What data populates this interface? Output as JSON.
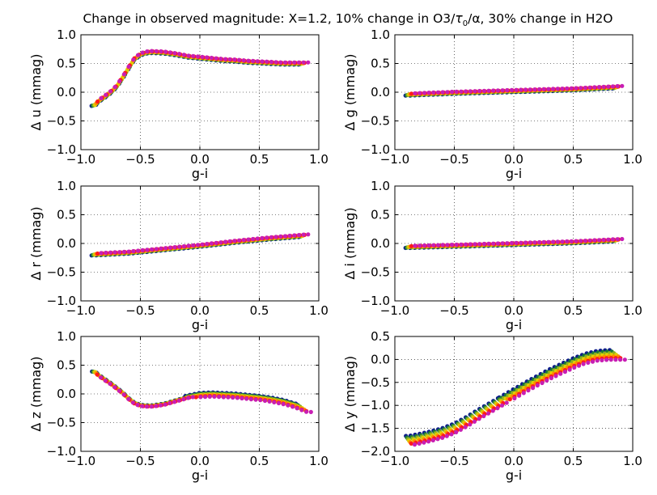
{
  "figure": {
    "title": "Change in observed magnitude: X=1.2, 10% change in O3/τ₀/α, 30% change in H2O",
    "title_parts": [
      "Change in observed magnitude: X=1.2, 10% change in O3/",
      "τ",
      "0",
      "/α, 30% change in H2O"
    ]
  },
  "chart_data": [
    {
      "type": "scatter",
      "panel": "u",
      "ylabel": "Δ u (mmag)",
      "xlabel": "g-i",
      "xlim": [
        -1.0,
        1.0
      ],
      "ylim": [
        -1.0,
        1.0
      ],
      "xticks": [
        "−1.0",
        "−0.5",
        "0.0",
        "0.5",
        "1.0"
      ],
      "yticks": [
        "1.0",
        "0.5",
        "0.0",
        "−0.5",
        "−1.0"
      ],
      "grid": true,
      "curve": [
        [
          -0.88,
          -0.22
        ],
        [
          -0.85,
          -0.15
        ],
        [
          -0.8,
          -0.08
        ],
        [
          -0.75,
          0.0
        ],
        [
          -0.7,
          0.1
        ],
        [
          -0.65,
          0.25
        ],
        [
          -0.6,
          0.42
        ],
        [
          -0.55,
          0.58
        ],
        [
          -0.5,
          0.66
        ],
        [
          -0.45,
          0.69
        ],
        [
          -0.4,
          0.7
        ],
        [
          -0.3,
          0.69
        ],
        [
          -0.2,
          0.66
        ],
        [
          -0.1,
          0.62
        ],
        [
          0.0,
          0.6
        ],
        [
          0.1,
          0.58
        ],
        [
          0.2,
          0.56
        ],
        [
          0.3,
          0.55
        ],
        [
          0.4,
          0.53
        ],
        [
          0.5,
          0.52
        ],
        [
          0.6,
          0.51
        ],
        [
          0.7,
          0.5
        ],
        [
          0.8,
          0.5
        ],
        [
          0.9,
          0.5
        ]
      ]
    },
    {
      "type": "scatter",
      "panel": "g",
      "ylabel": "Δ g (mmag)",
      "xlabel": "g-i",
      "xlim": [
        -1.0,
        1.0
      ],
      "ylim": [
        -1.0,
        1.0
      ],
      "xticks": [
        "−1.0",
        "−0.5",
        "0.0",
        "0.5",
        "1.0"
      ],
      "yticks": [
        "1.0",
        "0.5",
        "0.0",
        "−0.5",
        "−1.0"
      ],
      "grid": true,
      "curve": [
        [
          -0.88,
          -0.04
        ],
        [
          -0.5,
          -0.01
        ],
        [
          0.0,
          0.02
        ],
        [
          0.5,
          0.05
        ],
        [
          0.9,
          0.09
        ]
      ]
    },
    {
      "type": "scatter",
      "panel": "r",
      "ylabel": "Δ r (mmag)",
      "xlabel": "g-i",
      "xlim": [
        -1.0,
        1.0
      ],
      "ylim": [
        -1.0,
        1.0
      ],
      "xticks": [
        "−1.0",
        "−0.5",
        "0.0",
        "0.5",
        "1.0"
      ],
      "yticks": [
        "1.0",
        "0.5",
        "0.0",
        "−0.5",
        "−1.0"
      ],
      "grid": true,
      "curve": [
        [
          -0.88,
          -0.19
        ],
        [
          -0.6,
          -0.16
        ],
        [
          -0.3,
          -0.1
        ],
        [
          0.0,
          -0.04
        ],
        [
          0.3,
          0.03
        ],
        [
          0.6,
          0.09
        ],
        [
          0.9,
          0.14
        ]
      ]
    },
    {
      "type": "scatter",
      "panel": "i",
      "ylabel": "Δ i (mmag)",
      "xlabel": "g-i",
      "xlim": [
        -1.0,
        1.0
      ],
      "ylim": [
        -1.0,
        1.0
      ],
      "xticks": [
        "−1.0",
        "−0.5",
        "0.0",
        "0.5",
        "1.0"
      ],
      "yticks": [
        "1.0",
        "0.5",
        "0.0",
        "−0.5",
        "−1.0"
      ],
      "grid": true,
      "curve": [
        [
          -0.88,
          -0.06
        ],
        [
          -0.5,
          -0.04
        ],
        [
          0.0,
          -0.01
        ],
        [
          0.5,
          0.02
        ],
        [
          0.9,
          0.06
        ]
      ]
    },
    {
      "type": "scatter",
      "panel": "z",
      "ylabel": "Δ z (mmag)",
      "xlabel": "g-i",
      "xlim": [
        -1.0,
        1.0
      ],
      "ylim": [
        -1.0,
        1.0
      ],
      "xticks": [
        "−1.0",
        "−0.5",
        "0.0",
        "0.5",
        "1.0"
      ],
      "yticks": [
        "1.0",
        "0.5",
        "0.0",
        "−0.5",
        "−1.0"
      ],
      "grid": true,
      "curve": [
        [
          -0.88,
          0.38
        ],
        [
          -0.85,
          0.32
        ],
        [
          -0.8,
          0.25
        ],
        [
          -0.75,
          0.18
        ],
        [
          -0.7,
          0.1
        ],
        [
          -0.65,
          0.02
        ],
        [
          -0.6,
          -0.08
        ],
        [
          -0.55,
          -0.16
        ],
        [
          -0.5,
          -0.2
        ],
        [
          -0.45,
          -0.21
        ],
        [
          -0.4,
          -0.21
        ],
        [
          -0.3,
          -0.18
        ],
        [
          -0.2,
          -0.12
        ],
        [
          -0.1,
          -0.06
        ],
        [
          0.0,
          -0.02
        ],
        [
          0.1,
          -0.01
        ],
        [
          0.2,
          -0.02
        ],
        [
          0.3,
          -0.03
        ],
        [
          0.4,
          -0.05
        ],
        [
          0.5,
          -0.07
        ],
        [
          0.6,
          -0.1
        ],
        [
          0.7,
          -0.14
        ],
        [
          0.8,
          -0.2
        ],
        [
          0.9,
          -0.28
        ]
      ]
    },
    {
      "type": "scatter",
      "panel": "y",
      "ylabel": "Δ y (mmag)",
      "xlabel": "g-i",
      "xlim": [
        -1.0,
        1.0
      ],
      "ylim": [
        -2.0,
        0.5
      ],
      "xticks": [
        "−1.0",
        "−0.5",
        "0.0",
        "0.5",
        "1.0"
      ],
      "yticks": [
        "0.5",
        "0.0",
        "−0.5",
        "−1.0",
        "−1.5",
        "−2.0"
      ],
      "grid": true,
      "curve": [
        [
          -0.88,
          -1.77
        ],
        [
          -0.8,
          -1.73
        ],
        [
          -0.7,
          -1.67
        ],
        [
          -0.6,
          -1.6
        ],
        [
          -0.5,
          -1.5
        ],
        [
          -0.4,
          -1.36
        ],
        [
          -0.3,
          -1.2
        ],
        [
          -0.2,
          -1.05
        ],
        [
          -0.1,
          -0.9
        ],
        [
          0.0,
          -0.75
        ],
        [
          0.1,
          -0.6
        ],
        [
          0.2,
          -0.46
        ],
        [
          0.3,
          -0.32
        ],
        [
          0.4,
          -0.2
        ],
        [
          0.5,
          -0.08
        ],
        [
          0.6,
          0.02
        ],
        [
          0.7,
          0.08
        ],
        [
          0.8,
          0.1
        ],
        [
          0.9,
          0.1
        ]
      ]
    }
  ],
  "series_colors": [
    "#0c1b8a",
    "#1a7a3a",
    "#8bb020",
    "#e0d000",
    "#ff8c00",
    "#ff1a1a",
    "#c81eb4"
  ]
}
